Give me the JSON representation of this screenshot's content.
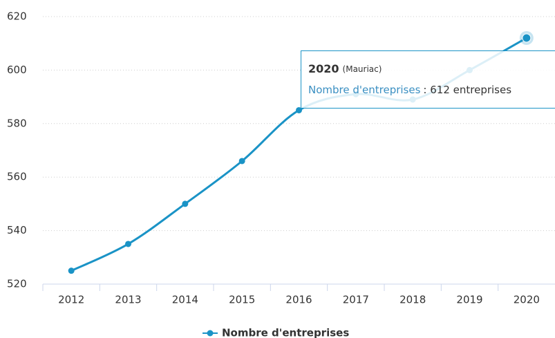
{
  "chart_data": {
    "type": "line",
    "categories": [
      "2012",
      "2013",
      "2014",
      "2015",
      "2016",
      "2017",
      "2018",
      "2019",
      "2020"
    ],
    "series": [
      {
        "name": "Nombre d'entreprises",
        "color": "#1a93c6",
        "values": [
          525,
          535,
          550,
          566,
          585,
          591,
          589,
          600,
          612
        ]
      }
    ],
    "ylim": [
      520,
      620
    ],
    "yticks": [
      520,
      540,
      560,
      580,
      600,
      620
    ],
    "grid": true,
    "legend": "bottom",
    "tooltip": {
      "title": "2020",
      "subtitle": "(Mauriac)",
      "series_name": "Nombre d'entreprises",
      "value_text": ": 612 entreprises"
    }
  }
}
